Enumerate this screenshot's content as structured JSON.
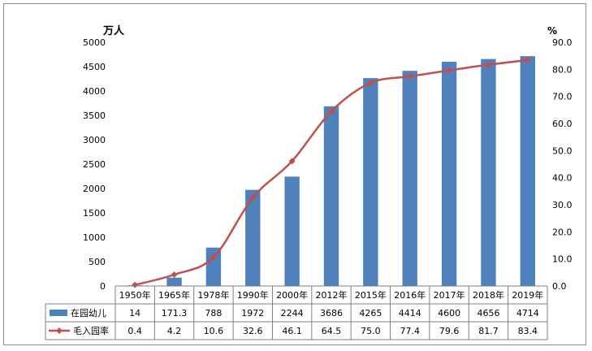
{
  "chart_data": {
    "type": "bar-line-combo",
    "categories": [
      "1950年",
      "1965年",
      "1978年",
      "1990年",
      "2000年",
      "2012年",
      "2015年",
      "2016年",
      "2017年",
      "2018年",
      "2019年"
    ],
    "series": [
      {
        "name": "在园幼儿",
        "type": "bar",
        "axis": "left",
        "values": [
          14,
          171.3,
          788,
          1972,
          2244,
          3686,
          4265,
          4414,
          4600,
          4656,
          4714
        ],
        "labels": [
          "14",
          "171.3",
          "788",
          "1972",
          "2244",
          "3686",
          "4265",
          "4414",
          "4600",
          "4656",
          "4714"
        ],
        "color": "#4f81bd"
      },
      {
        "name": "毛入园率",
        "type": "line",
        "axis": "right",
        "values": [
          0.4,
          4.2,
          10.6,
          32.6,
          46.1,
          64.5,
          75.0,
          77.4,
          79.6,
          81.7,
          83.4
        ],
        "labels": [
          "0.4",
          "4.2",
          "10.6",
          "32.6",
          "46.1",
          "64.5",
          "75.0",
          "77.4",
          "79.6",
          "81.7",
          "83.4"
        ],
        "color": "#c0504d"
      }
    ],
    "y_left": {
      "unit": "万人",
      "ylim": [
        0,
        5000
      ],
      "ticks": [
        "0",
        "500",
        "1000",
        "1500",
        "2000",
        "2500",
        "3000",
        "3500",
        "4000",
        "4500",
        "5000"
      ]
    },
    "y_right": {
      "unit": "%",
      "ylim": [
        0,
        90
      ],
      "ticks": [
        "0.0",
        "10.0",
        "20.0",
        "30.0",
        "40.0",
        "50.0",
        "60.0",
        "70.0",
        "80.0",
        "90.0"
      ]
    },
    "grid": false,
    "legend": "data-table-left"
  }
}
